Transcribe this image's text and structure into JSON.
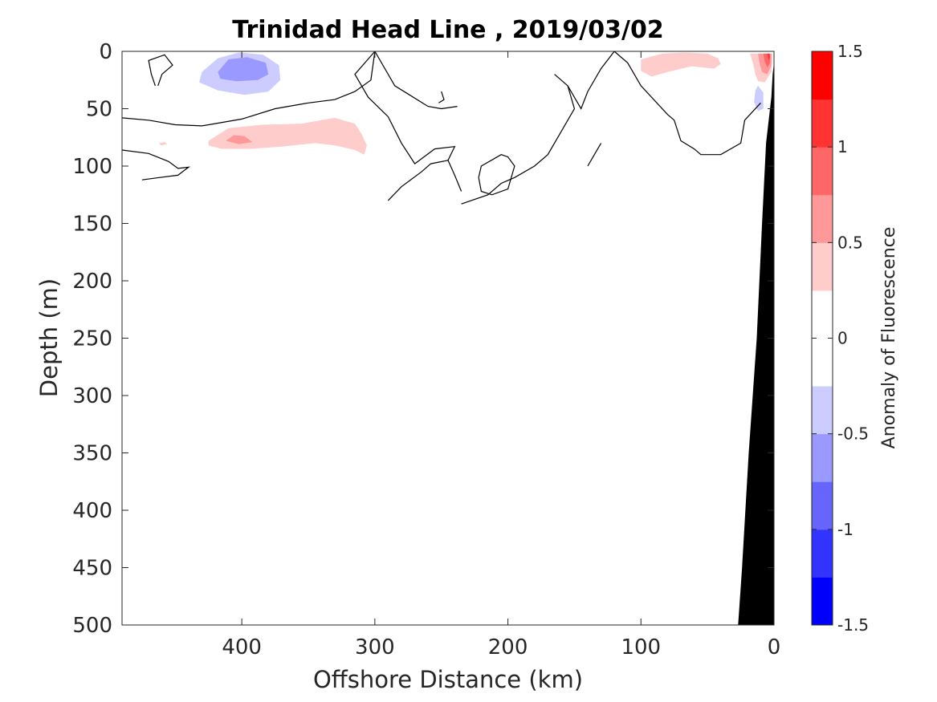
{
  "chart_data": {
    "type": "contour",
    "title": "Trinidad Head Line , 2019/03/02",
    "xlabel": "Offshore Distance (km)",
    "ylabel": "Depth (m)",
    "xlim": [
      490,
      0
    ],
    "ylim": [
      0,
      500
    ],
    "y_reversed": true,
    "x_ticks": [
      400,
      300,
      200,
      100,
      0
    ],
    "y_ticks": [
      0,
      50,
      100,
      150,
      200,
      250,
      300,
      350,
      400,
      450,
      500
    ],
    "colorbar": {
      "label": "Anomaly of Fluorescence",
      "range": [
        -1.5,
        1.5
      ],
      "ticks": [
        "1.5",
        "1",
        "0.5",
        "0",
        "-0.5",
        "-1",
        "-1.5"
      ],
      "tick_values": [
        1.5,
        1,
        0.5,
        0,
        -0.5,
        -1,
        -1.5
      ],
      "levels": [
        -1.5,
        -1.25,
        -1.0,
        -0.75,
        -0.5,
        -0.25,
        0,
        0.25,
        0.5,
        0.75,
        1.0,
        1.25,
        1.5
      ],
      "colors": [
        "#0000ff",
        "#3333ff",
        "#6666ff",
        "#9999ff",
        "#ccccff",
        "#ffffff",
        "#ffffff",
        "#ffcccc",
        "#ff9999",
        "#ff6666",
        "#ff3333",
        "#ff0000"
      ]
    },
    "filled_regions": [
      {
        "level": -0.25,
        "color": "#ccccff",
        "points": [
          [
            430,
            18
          ],
          [
            418,
            6
          ],
          [
            402,
            1
          ],
          [
            384,
            3
          ],
          [
            372,
            12
          ],
          [
            371,
            25
          ],
          [
            380,
            35
          ],
          [
            398,
            38
          ],
          [
            418,
            34
          ],
          [
            432,
            27
          ]
        ]
      },
      {
        "level": -0.5,
        "color": "#9999ff",
        "points": [
          [
            418,
            18
          ],
          [
            410,
            7
          ],
          [
            396,
            5
          ],
          [
            382,
            10
          ],
          [
            380,
            20
          ],
          [
            388,
            25
          ],
          [
            404,
            26
          ],
          [
            416,
            24
          ]
        ]
      },
      {
        "level": -0.25,
        "color": "#ccccff",
        "points": [
          [
            12,
            30
          ],
          [
            8,
            36
          ],
          [
            8,
            50
          ],
          [
            12,
            52
          ],
          [
            15,
            44
          ],
          [
            14,
            34
          ]
        ]
      },
      {
        "level": 0.25,
        "color": "#ffcccc",
        "points": [
          [
            425,
            78
          ],
          [
            410,
            67
          ],
          [
            385,
            64
          ],
          [
            355,
            63
          ],
          [
            330,
            58
          ],
          [
            315,
            63
          ],
          [
            310,
            72
          ],
          [
            306,
            82
          ],
          [
            308,
            90
          ],
          [
            315,
            86
          ],
          [
            330,
            82
          ],
          [
            345,
            80
          ],
          [
            370,
            83
          ],
          [
            395,
            85
          ],
          [
            415,
            85
          ],
          [
            425,
            82
          ]
        ]
      },
      {
        "level": 0.5,
        "color": "#ff9999",
        "points": [
          [
            412,
            78
          ],
          [
            406,
            73
          ],
          [
            398,
            74
          ],
          [
            392,
            79
          ],
          [
            402,
            81
          ]
        ]
      },
      {
        "level": 0.25,
        "color": "#ffcccc",
        "points": [
          [
            462,
            80
          ],
          [
            458,
            79
          ],
          [
            456,
            81
          ],
          [
            461,
            82
          ]
        ]
      },
      {
        "level": 0.25,
        "color": "#ffcccc",
        "points": [
          [
            100,
            7
          ],
          [
            84,
            2
          ],
          [
            68,
            1
          ],
          [
            50,
            2
          ],
          [
            42,
            6
          ],
          [
            40,
            11
          ],
          [
            45,
            15
          ],
          [
            62,
            13
          ],
          [
            80,
            18
          ],
          [
            92,
            22
          ],
          [
            100,
            17
          ]
        ]
      },
      {
        "level": 0.25,
        "color": "#ffcccc",
        "points": [
          [
            18,
            2
          ],
          [
            16,
            10
          ],
          [
            14,
            20
          ],
          [
            12,
            26
          ],
          [
            7,
            27
          ],
          [
            2,
            18
          ],
          [
            1,
            2
          ]
        ]
      },
      {
        "level": 0.5,
        "color": "#ff9999",
        "points": [
          [
            12,
            2
          ],
          [
            11,
            10
          ],
          [
            9,
            18
          ],
          [
            5,
            20
          ],
          [
            2,
            12
          ],
          [
            2,
            2
          ]
        ]
      },
      {
        "level": 0.75,
        "color": "#ff6666",
        "points": [
          [
            8,
            2
          ],
          [
            7,
            9
          ],
          [
            5,
            14
          ],
          [
            3,
            10
          ],
          [
            3,
            2
          ]
        ]
      },
      {
        "level": 1.0,
        "color": "#ff3333",
        "points": [
          [
            5,
            2
          ],
          [
            4,
            8
          ],
          [
            3,
            5
          ],
          [
            3.5,
            2
          ]
        ]
      }
    ],
    "zero_contours": [
      [
        [
          490,
          58
        ],
        [
          470,
          60
        ],
        [
          450,
          64
        ],
        [
          430,
          65
        ],
        [
          400,
          59
        ],
        [
          375,
          50
        ],
        [
          350,
          45
        ],
        [
          330,
          42
        ],
        [
          315,
          35
        ],
        [
          303,
          25
        ],
        [
          300,
          0
        ]
      ],
      [
        [
          465,
          30
        ],
        [
          468,
          20
        ],
        [
          470,
          8
        ],
        [
          458,
          3
        ],
        [
          452,
          12
        ],
        [
          460,
          20
        ],
        [
          463,
          30
        ]
      ],
      [
        [
          490,
          86
        ],
        [
          470,
          89
        ],
        [
          455,
          96
        ],
        [
          448,
          102
        ],
        [
          440,
          101
        ],
        [
          448,
          108
        ],
        [
          462,
          110
        ],
        [
          475,
          112
        ]
      ],
      [
        [
          300,
          0
        ],
        [
          315,
          20
        ],
        [
          305,
          40
        ],
        [
          290,
          57
        ],
        [
          280,
          80
        ],
        [
          270,
          98
        ],
        [
          255,
          85
        ],
        [
          240,
          83
        ],
        [
          245,
          95
        ],
        [
          258,
          98
        ],
        [
          265,
          105
        ],
        [
          280,
          118
        ],
        [
          290,
          130
        ]
      ],
      [
        [
          300,
          0
        ],
        [
          285,
          30
        ],
        [
          260,
          48
        ],
        [
          250,
          50
        ],
        [
          238,
          48
        ]
      ],
      [
        [
          250,
          35
        ],
        [
          248,
          42
        ],
        [
          252,
          45
        ]
      ],
      [
        [
          245,
          95
        ],
        [
          240,
          108
        ],
        [
          235,
          122
        ]
      ],
      [
        [
          222,
          110
        ],
        [
          220,
          100
        ],
        [
          205,
          90
        ],
        [
          200,
          92
        ],
        [
          195,
          100
        ],
        [
          200,
          120
        ],
        [
          212,
          125
        ],
        [
          220,
          122
        ],
        [
          222,
          110
        ]
      ],
      [
        [
          120,
          0
        ],
        [
          110,
          10
        ],
        [
          100,
          30
        ],
        [
          80,
          55
        ],
        [
          75,
          60
        ],
        [
          70,
          78
        ],
        [
          60,
          85
        ],
        [
          55,
          90
        ],
        [
          40,
          90
        ],
        [
          25,
          80
        ],
        [
          22,
          60
        ],
        [
          10,
          45
        ]
      ],
      [
        [
          165,
          20
        ],
        [
          155,
          30
        ],
        [
          150,
          50
        ],
        [
          160,
          70
        ],
        [
          170,
          90
        ],
        [
          180,
          100
        ],
        [
          195,
          110
        ],
        [
          205,
          115
        ],
        [
          215,
          125
        ],
        [
          235,
          133
        ]
      ],
      [
        [
          120,
          0
        ],
        [
          130,
          15
        ],
        [
          140,
          35
        ],
        [
          145,
          50
        ],
        [
          155,
          30
        ]
      ],
      [
        [
          130,
          80
        ],
        [
          135,
          90
        ],
        [
          140,
          100
        ]
      ]
    ],
    "bathymetry": {
      "color": "#000000",
      "points": [
        [
          0,
          0
        ],
        [
          0,
          10
        ],
        [
          1,
          20
        ],
        [
          2,
          40
        ],
        [
          6,
          80
        ],
        [
          9,
          150
        ],
        [
          13,
          250
        ],
        [
          19,
          350
        ],
        [
          24,
          450
        ],
        [
          27,
          500
        ],
        [
          0,
          500
        ]
      ]
    }
  }
}
